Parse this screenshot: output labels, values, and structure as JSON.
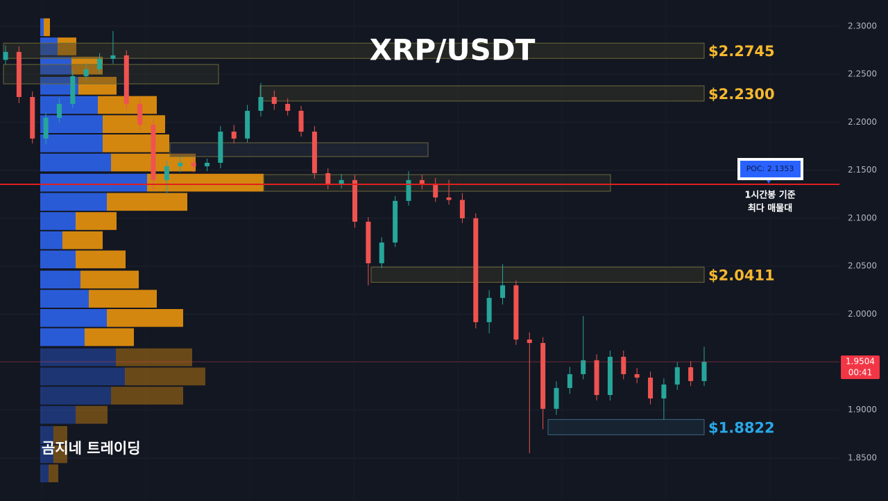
{
  "chart_data": {
    "type": "candlestick",
    "title": "XRP/USDT",
    "watermark": "곰지네 트레이딩",
    "ylim": [
      1.8052,
      2.3274
    ],
    "yticks": [
      {
        "value": 2.3,
        "label": "2.3000"
      },
      {
        "value": 2.25,
        "label": "2.2500"
      },
      {
        "value": 2.2,
        "label": "2.2000"
      },
      {
        "value": 2.15,
        "label": "2.1500"
      },
      {
        "value": 2.1,
        "label": "2.1000"
      },
      {
        "value": 2.05,
        "label": "2.0500"
      },
      {
        "value": 2.0,
        "label": "2.0000"
      },
      {
        "value": 1.95,
        "label": "1.9500"
      },
      {
        "value": 1.9,
        "label": "1.9000"
      },
      {
        "value": 1.85,
        "label": "1.8500"
      }
    ],
    "grid": true,
    "up_color": "#26a69a",
    "down_color": "#ef5350",
    "open": [
      2.265,
      2.2733,
      2.2263,
      2.183,
      2.2047,
      2.2191,
      2.248,
      2.2552,
      2.2661,
      2.2697,
      2.2191,
      2.1974,
      2.1397,
      2.1541,
      2.1577,
      2.1541,
      2.1577,
      2.1902,
      2.183,
      2.2119,
      2.2263,
      2.2191,
      2.2119,
      2.1902,
      2.1469,
      2.136,
      2.1397,
      2.0963,
      2.053,
      2.0746,
      2.118,
      2.1397,
      2.136,
      2.1216,
      2.119,
      2.0999,
      1.9916,
      2.0169,
      2.03,
      1.9735,
      1.9699,
      1.9013,
      1.923,
      1.9374,
      1.9519,
      1.9157,
      1.9555,
      1.9374,
      1.9338,
      1.9121,
      1.9266,
      1.9446,
      1.9302
    ],
    "high": [
      2.28,
      2.279,
      2.232,
      2.21,
      2.225,
      2.254,
      2.262,
      2.272,
      2.295,
      2.275,
      2.225,
      2.203,
      2.16,
      2.164,
      2.163,
      2.162,
      2.196,
      2.197,
      2.218,
      2.241,
      2.233,
      2.225,
      2.217,
      2.196,
      2.152,
      2.146,
      2.145,
      2.101,
      2.08,
      2.123,
      2.149,
      2.145,
      2.142,
      2.14,
      2.126,
      2.105,
      2.025,
      2.052,
      2.035,
      1.981,
      1.976,
      1.93,
      1.945,
      1.998,
      1.958,
      1.962,
      1.962,
      1.944,
      1.94,
      1.933,
      1.95,
      1.951,
      1.966
    ],
    "low": [
      2.26,
      2.22,
      2.178,
      2.177,
      2.2,
      2.215,
      2.243,
      2.25,
      2.261,
      2.213,
      2.192,
      2.13,
      2.125,
      2.148,
      2.148,
      2.149,
      2.152,
      2.178,
      2.179,
      2.206,
      2.213,
      2.207,
      2.185,
      2.141,
      2.13,
      2.131,
      2.09,
      2.03,
      2.048,
      2.07,
      2.113,
      2.13,
      2.117,
      2.114,
      2.095,
      1.985,
      1.98,
      2.01,
      1.968,
      1.855,
      1.88,
      1.895,
      1.917,
      1.932,
      1.91,
      1.91,
      1.932,
      1.928,
      1.906,
      1.89,
      1.921,
      1.925,
      1.925
    ],
    "close": [
      2.2733,
      2.2263,
      2.183,
      2.2047,
      2.2191,
      2.248,
      2.2552,
      2.2661,
      2.2697,
      2.2191,
      2.1974,
      2.1397,
      2.1541,
      2.1577,
      2.1541,
      2.1577,
      2.1902,
      2.183,
      2.2119,
      2.2263,
      2.2191,
      2.2119,
      2.1902,
      2.1469,
      2.136,
      2.1397,
      2.0963,
      2.053,
      2.0746,
      2.118,
      2.1397,
      2.136,
      2.1216,
      2.119,
      2.0999,
      1.9916,
      2.0169,
      2.03,
      1.9735,
      1.9699,
      1.9013,
      1.923,
      1.9374,
      1.9519,
      1.9157,
      1.9555,
      1.9374,
      1.9338,
      1.9121,
      1.9266,
      1.9446,
      1.9302,
      1.9504
    ],
    "levels": [
      {
        "value": 2.2745,
        "label": "$2.2745",
        "color": "#f5b82e"
      },
      {
        "value": 2.23,
        "label": "$2.2300",
        "color": "#f5b82e"
      },
      {
        "value": 2.0411,
        "label": "$2.0411",
        "color": "#f5b82e"
      },
      {
        "value": 1.8822,
        "label": "$1.8822",
        "color": "#29a8e6"
      }
    ],
    "poc": {
      "value": 2.1353,
      "label": "POC: 2.1353",
      "note": [
        "1시간봉 기준",
        "최다 매물대"
      ],
      "color": "#e0201f"
    },
    "last_price": {
      "value": 1.9504,
      "label": "1.9504",
      "countdown": "00:41",
      "color": "#f23645"
    },
    "volume_profile": {
      "levels": [
        2.299,
        2.279,
        2.259,
        2.238,
        2.218,
        2.198,
        2.178,
        2.158,
        2.137,
        2.117,
        2.097,
        2.077,
        2.057,
        2.036,
        2.016,
        1.996,
        1.976,
        1.955,
        1.935,
        1.915,
        1.895,
        1.874,
        1.854,
        1.834
      ],
      "buy": [
        5,
        25,
        45,
        55,
        83,
        90,
        90,
        102,
        154,
        96,
        51,
        32,
        51,
        58,
        70,
        96,
        64,
        109,
        122,
        102,
        51,
        19,
        19,
        12
      ],
      "sell": [
        9,
        27,
        45,
        55,
        85,
        90,
        96,
        122,
        168,
        116,
        59,
        58,
        72,
        84,
        98,
        110,
        71,
        110,
        116,
        104,
        46,
        20,
        20,
        14
      ],
      "buy_color": "#2a5bd7",
      "sell_color": "#d4870f"
    }
  }
}
